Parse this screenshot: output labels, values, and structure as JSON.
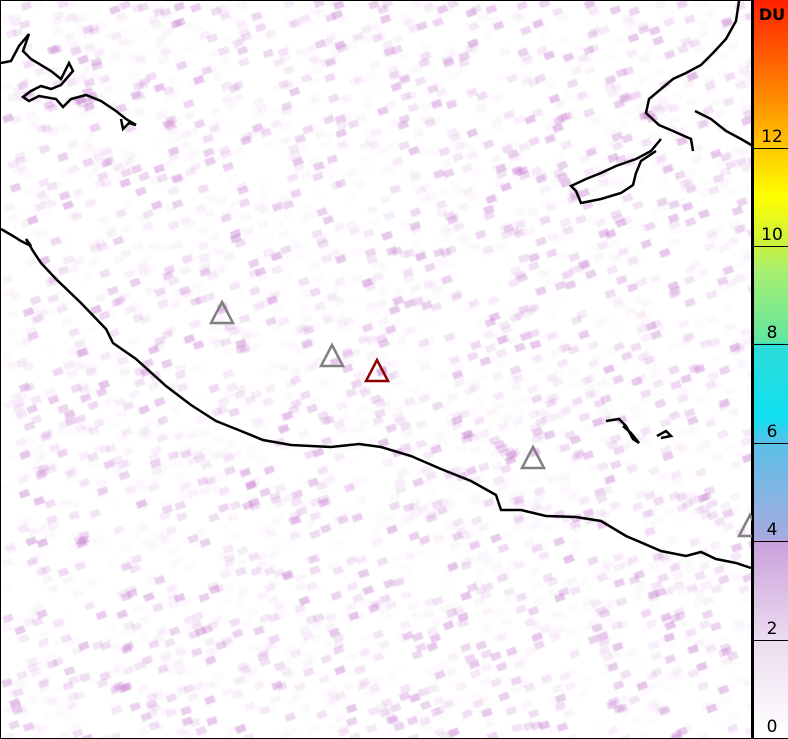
{
  "colorbar": {
    "unit": "DU",
    "ticks": [
      "0",
      "2",
      "4",
      "6",
      "8",
      "10",
      "12"
    ],
    "range": [
      0,
      15
    ],
    "stops": [
      {
        "value": 0,
        "color": "#ffffff"
      },
      {
        "value": 2,
        "color": "#ecdcef"
      },
      {
        "value": 4,
        "color": "#c9a0dc"
      },
      {
        "value": 4.05,
        "color": "#a8aadf"
      },
      {
        "value": 6,
        "color": "#5bc0e8"
      },
      {
        "value": 6.5,
        "color": "#10e0f0"
      },
      {
        "value": 8,
        "color": "#2cdcd8"
      },
      {
        "value": 8.05,
        "color": "#60e6a0"
      },
      {
        "value": 9.5,
        "color": "#a8f070"
      },
      {
        "value": 10,
        "color": "#c8f040"
      },
      {
        "value": 11,
        "color": "#ffff00"
      },
      {
        "value": 12,
        "color": "#ffc800"
      },
      {
        "value": 13,
        "color": "#ff8c00"
      },
      {
        "value": 15,
        "color": "#ff2000"
      }
    ]
  },
  "markers": [
    {
      "type": "volcano",
      "color": "#808080"
    },
    {
      "type": "volcano",
      "color": "#808080"
    },
    {
      "type": "volcano",
      "color": "#8b0000"
    },
    {
      "type": "volcano",
      "color": "#808080"
    },
    {
      "type": "volcano",
      "color": "#808080"
    }
  ],
  "colors": {
    "coastline": "#000000",
    "speckle": "#c882d2"
  }
}
